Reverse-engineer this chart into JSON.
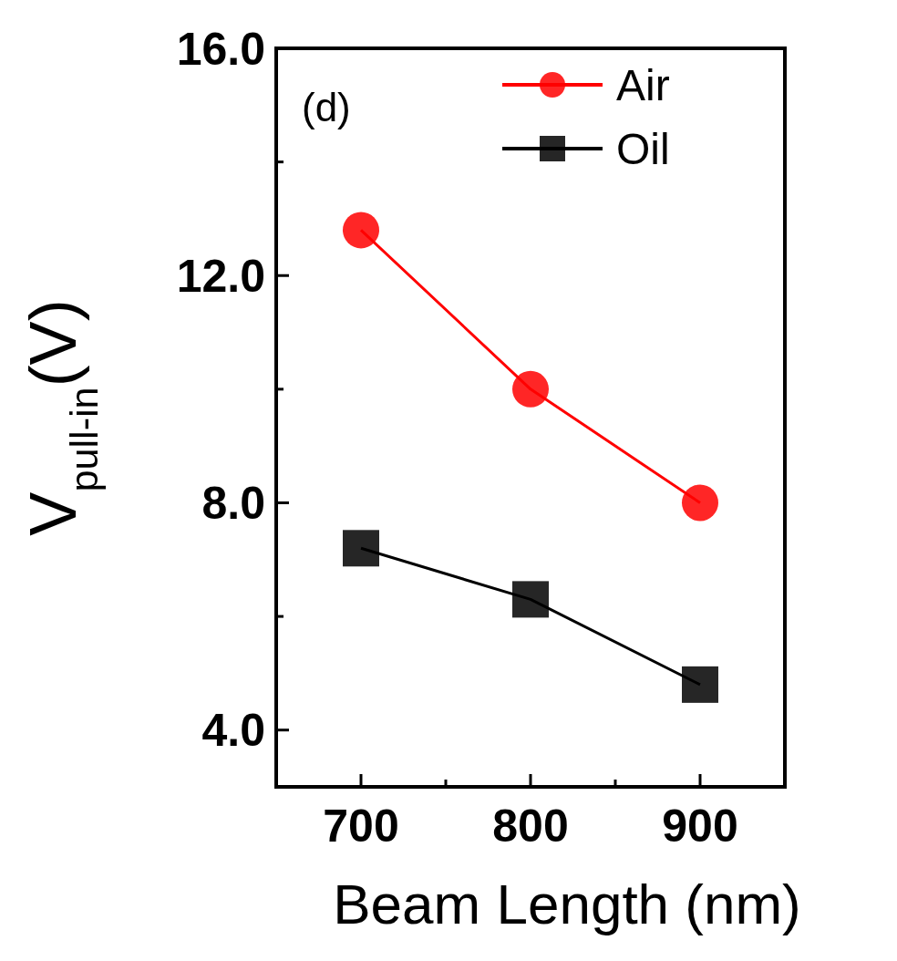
{
  "chart_data": {
    "type": "line",
    "xlabel": "Beam Length (nm)",
    "ylabel": "V$_{pull-in}$(V)",
    "annotations": [
      "(d)"
    ],
    "x": [
      700,
      800,
      900
    ],
    "series": [
      {
        "name": "Air",
        "color": "#ff0000",
        "values": [
          12.8,
          10.0,
          8.0
        ],
        "marker": "circle"
      },
      {
        "name": "Oil",
        "color": "#000000",
        "values": [
          7.2,
          6.3,
          4.8
        ],
        "marker": "square"
      }
    ],
    "xlim": [
      650,
      950
    ],
    "xticks": [
      700,
      {
        "value": 750,
        "label": null
      },
      800,
      {
        "value": 850,
        "label": null
      },
      900
    ],
    "ylim": [
      3,
      16
    ],
    "yticks": [
      {
        "value": 4,
        "label": "4.0"
      },
      {
        "value": 6,
        "label": null
      },
      {
        "value": 8,
        "label": "8.0"
      },
      {
        "value": 10,
        "label": null
      },
      {
        "value": 12,
        "label": "12.0"
      },
      {
        "value": 14,
        "label": null
      },
      {
        "value": 16,
        "label": "16.0"
      }
    ],
    "grid": false,
    "legend": "top right",
    "line_style": "solid"
  }
}
